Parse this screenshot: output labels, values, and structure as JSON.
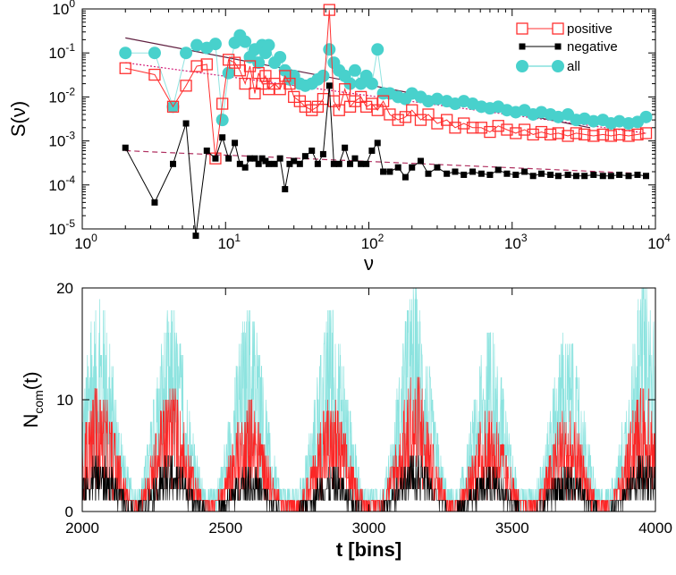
{
  "colors": {
    "positive": "#ff3030",
    "negative": "#000000",
    "all": "#48d1cc",
    "positive_fit": "#d4207a",
    "negative_fit": "#b03060",
    "all_fit": "#602040",
    "series_all_trace": "#7fe0dc",
    "series_positive_trace": "#ff1a1a",
    "series_negative_trace": "#000000"
  },
  "chart_data": [
    {
      "type": "scatter",
      "panel": "top",
      "xlabel": "ν",
      "ylabel": "S(ν)",
      "xscale": "log",
      "yscale": "log",
      "xlim": [
        1,
        10000
      ],
      "ylim": [
        1e-05,
        1
      ],
      "x_ticks": [
        {
          "value": 1,
          "base": "10",
          "exp": "0"
        },
        {
          "value": 10,
          "base": "10",
          "exp": "1"
        },
        {
          "value": 100,
          "base": "10",
          "exp": "2"
        },
        {
          "value": 1000,
          "base": "10",
          "exp": "3"
        },
        {
          "value": 10000,
          "base": "10",
          "exp": "4"
        }
      ],
      "y_ticks": [
        {
          "value": 1,
          "base": "10",
          "exp": "0"
        },
        {
          "value": 0.1,
          "base": "10",
          "exp": "-1"
        },
        {
          "value": 0.01,
          "base": "10",
          "exp": "-2"
        },
        {
          "value": 0.001,
          "base": "10",
          "exp": "-3"
        },
        {
          "value": 0.0001,
          "base": "10",
          "exp": "-4"
        },
        {
          "value": 1e-05,
          "base": "10",
          "exp": "-5"
        }
      ],
      "legend_position": "top-right",
      "grid": false,
      "series": [
        {
          "name": "positive",
          "marker": "open-square",
          "x": [
            2,
            3.2,
            4.3,
            5.3,
            6.3,
            7.4,
            8.5,
            9.5,
            10.5,
            11.6,
            12.6,
            13.7,
            14.8,
            16,
            17,
            18,
            19,
            20,
            22,
            24,
            26,
            28,
            30,
            33,
            36,
            40,
            44,
            48,
            53,
            57,
            62,
            68,
            74,
            80,
            88,
            96,
            105,
            115,
            126,
            140,
            160,
            180,
            200,
            230,
            260,
            300,
            350,
            400,
            460,
            530,
            610,
            700,
            800,
            920,
            1060,
            1220,
            1400,
            1600,
            1850,
            2100,
            2450,
            2800,
            3200,
            3700,
            4300,
            4900,
            5600,
            6500,
            7500,
            8600
          ],
          "y": [
            0.045,
            0.032,
            0.006,
            0.018,
            0.05,
            0.055,
            0.0004,
            0.007,
            0.07,
            0.06,
            0.04,
            0.02,
            0.05,
            0.012,
            0.035,
            0.02,
            0.03,
            0.015,
            0.02,
            0.015,
            0.03,
            0.02,
            0.01,
            0.008,
            0.006,
            0.005,
            0.006,
            0.009,
            0.95,
            0.008,
            0.005,
            0.015,
            0.006,
            0.008,
            0.01,
            0.006,
            0.007,
            0.005,
            0.008,
            0.004,
            0.003,
            0.0035,
            0.005,
            0.003,
            0.004,
            0.0025,
            0.003,
            0.002,
            0.0025,
            0.002,
            0.002,
            0.0016,
            0.0022,
            0.0018,
            0.0015,
            0.0018,
            0.0014,
            0.0016,
            0.0014,
            0.0015,
            0.0013,
            0.0015,
            0.0014,
            0.0013,
            0.0014,
            0.0013,
            0.0014,
            0.0013,
            0.0014,
            0.0015
          ],
          "fit": {
            "x": [
              2,
              8600
            ],
            "y": [
              0.06,
              0.0015
            ]
          }
        },
        {
          "name": "negative",
          "marker": "filled-small-square",
          "x": [
            2,
            3.2,
            4.3,
            5.3,
            6.2,
            7.4,
            8.5,
            9.5,
            10.5,
            11.6,
            12.6,
            13.7,
            14.8,
            16,
            17,
            18,
            19,
            20,
            22,
            24,
            26,
            28,
            30,
            33,
            36,
            40,
            44,
            48,
            53,
            57,
            62,
            68,
            74,
            80,
            88,
            96,
            105,
            115,
            126,
            140,
            160,
            180,
            200,
            230,
            260,
            300,
            350,
            400,
            460,
            530,
            610,
            700,
            800,
            920,
            1060,
            1220,
            1400,
            1600,
            1850,
            2100,
            2450,
            2800,
            3200,
            3700,
            4300,
            4900,
            5600,
            6500,
            7500,
            8600
          ],
          "y": [
            0.0007,
            4e-05,
            0.0003,
            0.0025,
            7e-06,
            0.0006,
            0.0004,
            0.0012,
            0.0004,
            0.0009,
            0.0003,
            0.00025,
            0.0004,
            0.0004,
            0.0003,
            0.0004,
            0.00035,
            0.0003,
            0.0003,
            0.0004,
            8e-05,
            0.0003,
            0.00035,
            0.0003,
            0.00045,
            0.0006,
            0.0003,
            0.0005,
            0.018,
            0.0003,
            0.0003,
            0.0007,
            0.0003,
            0.0004,
            0.0003,
            0.0003,
            0.0006,
            0.0009,
            0.0002,
            0.0002,
            0.00025,
            0.00015,
            0.00025,
            0.00035,
            0.00018,
            0.00025,
            0.00018,
            0.0002,
            0.00017,
            0.0002,
            0.00018,
            0.00017,
            0.00022,
            0.00018,
            0.00017,
            0.0002,
            0.00016,
            0.00018,
            0.00017,
            0.00016,
            0.00017,
            0.00016,
            0.00016,
            0.00017,
            0.00016,
            0.00016,
            0.00017,
            0.00016,
            0.00017,
            0.00016
          ],
          "fit": {
            "x": [
              2,
              8600
            ],
            "y": [
              0.0006,
              0.00018
            ]
          }
        },
        {
          "name": "all",
          "marker": "filled-circle",
          "x": [
            2,
            3.2,
            4.3,
            5.3,
            6.3,
            7.4,
            8.5,
            9.5,
            10.5,
            11.6,
            12.6,
            13.7,
            14.8,
            16,
            17,
            18,
            19,
            20,
            22,
            24,
            26,
            28,
            30,
            33,
            36,
            40,
            44,
            48,
            53,
            57,
            62,
            68,
            74,
            80,
            88,
            96,
            105,
            115,
            126,
            140,
            160,
            180,
            200,
            230,
            260,
            300,
            350,
            400,
            460,
            530,
            610,
            700,
            800,
            920,
            1060,
            1220,
            1400,
            1600,
            1850,
            2100,
            2450,
            2800,
            3200,
            3700,
            4300,
            4900,
            5600,
            6500,
            7500,
            8600
          ],
          "y": [
            0.1,
            0.1,
            0.006,
            0.1,
            0.15,
            0.13,
            0.16,
            0.003,
            0.035,
            0.17,
            0.25,
            0.18,
            0.08,
            0.12,
            0.06,
            0.15,
            0.1,
            0.15,
            0.06,
            0.08,
            0.04,
            0.025,
            0.03,
            0.02,
            0.018,
            0.02,
            0.025,
            0.03,
            0.12,
            0.06,
            0.04,
            0.03,
            0.02,
            0.04,
            0.02,
            0.03,
            0.02,
            0.12,
            0.012,
            0.012,
            0.01,
            0.009,
            0.012,
            0.01,
            0.008,
            0.009,
            0.008,
            0.007,
            0.008,
            0.007,
            0.006,
            0.0055,
            0.006,
            0.005,
            0.0045,
            0.005,
            0.004,
            0.0045,
            0.004,
            0.0035,
            0.004,
            0.003,
            0.0032,
            0.0028,
            0.003,
            0.0025,
            0.0028,
            0.0025,
            0.0027,
            0.0035
          ],
          "fit": {
            "x": [
              2,
              3500
            ],
            "y": [
              0.22,
              0.002
            ]
          }
        }
      ]
    },
    {
      "type": "line",
      "panel": "bottom",
      "xlabel": "t [bins]",
      "ylabel_main": "N",
      "ylabel_sub": "com",
      "ylabel_arg": "(t)",
      "xlim": [
        2000,
        4000
      ],
      "ylim": [
        0,
        20
      ],
      "x_ticks": [
        "2000",
        "2500",
        "3000",
        "3500",
        "4000"
      ],
      "y_ticks": [
        "0",
        "10",
        "20"
      ],
      "grid": false,
      "period_bins": 275,
      "peak_times": [
        2060,
        2310,
        2580,
        2870,
        3160,
        3420,
        3690,
        3960
      ],
      "peak_values": {
        "all": [
          19,
          18,
          18,
          18,
          20,
          16,
          16,
          20
        ],
        "positive": [
          11,
          11,
          10,
          10,
          12,
          9,
          9,
          11
        ],
        "negative": [
          5,
          5,
          4,
          4,
          5,
          4,
          4,
          5
        ]
      },
      "trough_values": {
        "all": 2,
        "positive": 1,
        "negative": 0
      }
    }
  ]
}
